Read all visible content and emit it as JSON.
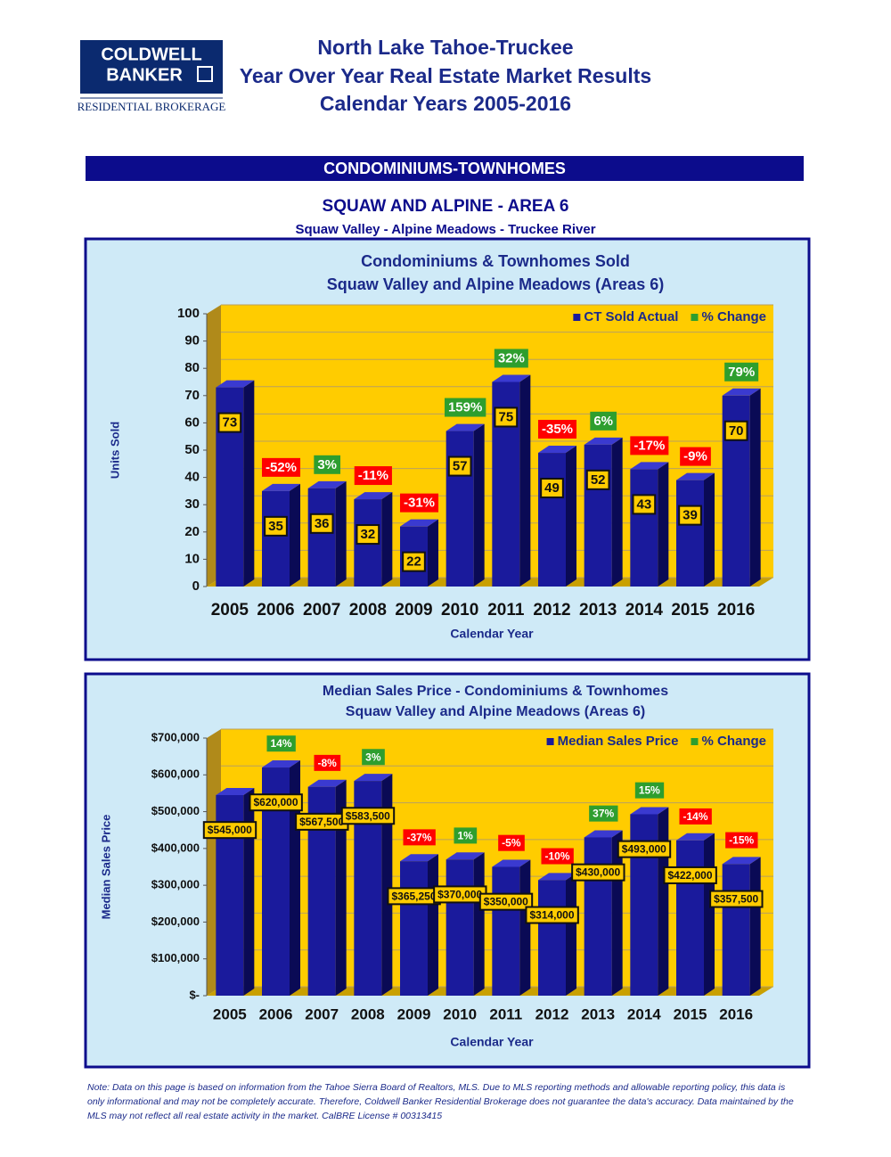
{
  "header": {
    "logo_line1": "COLDWELL",
    "logo_line2": "BANKER",
    "logo_sub": "RESIDENTIAL BROKERAGE",
    "title_lines": [
      "North Lake Tahoe-Truckee",
      "Year Over Year Real Estate Market Results",
      "Calendar Years 2005-2016"
    ]
  },
  "section": "CONDOMINIUMS-TOWNHOMES",
  "area_title": "SQUAW AND ALPINE - AREA 6",
  "area_subtitle": "Squaw Valley - Alpine Meadows - Truckee River",
  "chart_data": [
    {
      "type": "bar",
      "title": "Condominiums & Townhomes Sold",
      "subtitle": "Squaw Valley and Alpine Meadows (Areas 6)",
      "y_label": "Units Sold",
      "x_label": "Calendar Year",
      "categories": [
        "2005",
        "2006",
        "2007",
        "2008",
        "2009",
        "2010",
        "2011",
        "2012",
        "2013",
        "2014",
        "2015",
        "2016"
      ],
      "series": [
        {
          "name": "CT Sold Actual",
          "color": "#1a1a9c",
          "values": [
            73,
            35,
            36,
            32,
            22,
            57,
            75,
            49,
            52,
            43,
            39,
            70
          ]
        },
        {
          "name": "% Change",
          "color": "#2e9e2e",
          "negative_color": "#ff0000",
          "values": [
            null,
            -52,
            3,
            -11,
            -31,
            159,
            32,
            -35,
            6,
            -17,
            -9,
            79
          ],
          "value_labels": [
            null,
            "-52%",
            "3%",
            "-11%",
            "-31%",
            "159%",
            "32%",
            "-35%",
            "6%",
            "-17%",
            "-9%",
            "79%"
          ]
        }
      ],
      "ylim": [
        0,
        100
      ],
      "yticks": [
        0,
        10,
        20,
        30,
        40,
        50,
        60,
        70,
        80,
        90,
        100
      ],
      "grid": true,
      "legend": "upper right",
      "plot_color": "#ffcc00"
    },
    {
      "type": "bar",
      "title": "Median Sales Price - Condominiums & Townhomes",
      "subtitle": "Squaw Valley and Alpine Meadows (Areas 6)",
      "y_label": "Median Sales Price",
      "x_label": "Calendar Year",
      "categories": [
        "2005",
        "2006",
        "2007",
        "2008",
        "2009",
        "2010",
        "2011",
        "2012",
        "2013",
        "2014",
        "2015",
        "2016"
      ],
      "series": [
        {
          "name": "Median Sales Price",
          "color": "#1a1a9c",
          "values": [
            545000,
            620000,
            567500,
            583500,
            365250,
            370000,
            350000,
            314000,
            430000,
            493000,
            422000,
            357500
          ],
          "value_labels": [
            "$545,000",
            "$620,000",
            "$567,500",
            "$583,500",
            "$365,250",
            "$370,000",
            "$350,000",
            "$314,000",
            "$430,000",
            "$493,000",
            "$422,000",
            "$357,500"
          ]
        },
        {
          "name": "% Change",
          "color": "#2e9e2e",
          "negative_color": "#ff0000",
          "values": [
            null,
            14,
            -8,
            3,
            -37,
            1,
            -5,
            -10,
            37,
            15,
            -14,
            -15
          ],
          "value_labels": [
            null,
            "14%",
            "-8%",
            "3%",
            "-37%",
            "1%",
            "-5%",
            "-10%",
            "37%",
            "15%",
            "-14%",
            "-15%"
          ]
        }
      ],
      "ylim": [
        0,
        700000
      ],
      "yticks": [
        {
          "value": 0,
          "label": "$-"
        },
        {
          "value": 100000,
          "label": "$100,000"
        },
        {
          "value": 200000,
          "label": "$200,000"
        },
        {
          "value": 300000,
          "label": "$300,000"
        },
        {
          "value": 400000,
          "label": "$400,000"
        },
        {
          "value": 500000,
          "label": "$500,000"
        },
        {
          "value": 600000,
          "label": "$600,000"
        },
        {
          "value": 700000,
          "label": "$700,000"
        }
      ],
      "grid": true,
      "legend": "upper right",
      "plot_color": "#ffcc00"
    }
  ],
  "note": "Note: Data on this page is based on information from the Tahoe Sierra Board of Realtors, MLS.  Due to MLS reporting methods and allowable reporting policy, this data is only informational and may not be completely accurate.  Therefore, Coldwell Banker Residential Brokerage does not guarantee the data's accuracy.  Data maintained by the MLS may not reflect all real estate activity in the market.  CalBRE License # 00313415"
}
